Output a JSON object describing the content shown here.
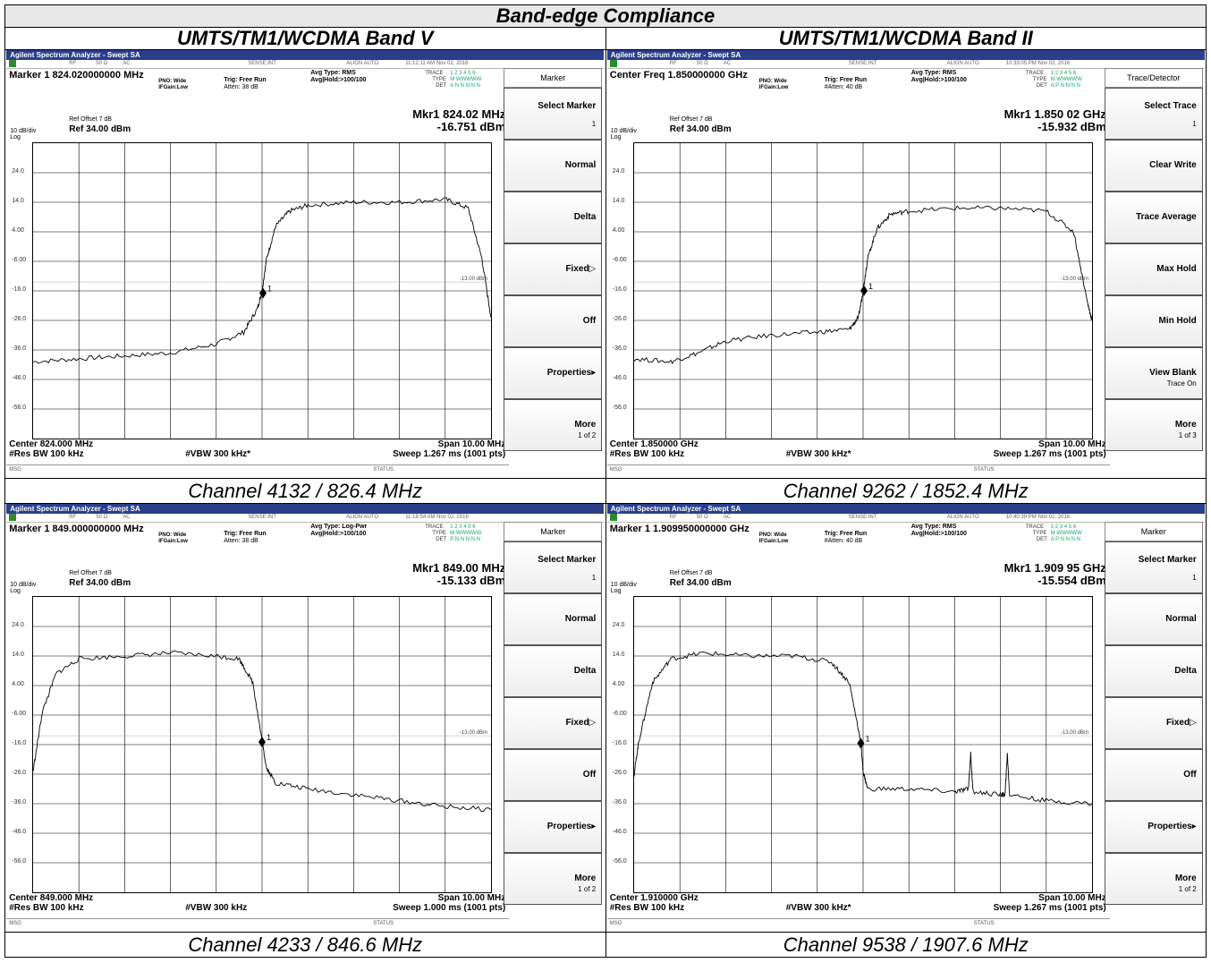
{
  "report": {
    "title": "Band-edge Compliance",
    "col_left": "UMTS/TM1/WCDMA Band V",
    "col_right": "UMTS/TM1/WCDMA Band II"
  },
  "app_title": "Agilent Spectrum Analyzer - Swept SA",
  "common": {
    "rf": "RF",
    "ohm": "50 Ω",
    "ac": "AC",
    "sense": "SENSE:INT",
    "align": "ALIGN AUTO",
    "trace_label": "TRACE",
    "type_label": "TYPE",
    "det_label": "DET",
    "trace_nums": "1 2 3 4 5 6",
    "pno": "PNO: Wide",
    "ifgain": "IFGain:Low",
    "trig": "Trig: Free Run",
    "ref_offset": "Ref Offset 7 dB",
    "ref_level": "Ref 34.00 dBm",
    "scale": "10 dB/div",
    "log": "Log",
    "res_bw": "#Res BW 100 kHz",
    "span": "Span 10.00 MHz",
    "msg": "MSG",
    "status": "STATUS",
    "marker_mark": "1",
    "limit_label": "-13.00 dBm",
    "y_ticks": [
      "24.0",
      "14.0",
      "4.00",
      "-6.00",
      "-16.0",
      "-26.0",
      "-36.0",
      "-46.0",
      "-56.0"
    ]
  },
  "shots": [
    {
      "time": "11:12:11 AM Nov 02, 2016",
      "type_val": "M WWWWW",
      "det_val": "A N N N N N",
      "header": "Marker 1 824.020000000 MHz",
      "avg_type": "Avg Type: RMS",
      "avg_hold": "Avg|Hold:>100/100",
      "atten": "Atten: 38 dB",
      "mkr_freq": "Mkr1 824.02 MHz",
      "mkr_amp": "-16.751 dBm",
      "center": "Center 824.000 MHz",
      "vbw": "#VBW 300 kHz*",
      "sweep": "Sweep  1.267 ms (1001 pts)",
      "caption": "Channel 4132 / 826.4 MHz",
      "menu_title": "Marker",
      "keys": [
        {
          "label": "Select Marker",
          "sub": "1"
        },
        {
          "label": "Normal",
          "sub": ""
        },
        {
          "label": "Delta",
          "sub": ""
        },
        {
          "label": "Fixed▷",
          "sub": ""
        },
        {
          "label": "Off",
          "sub": ""
        },
        {
          "label": "Properties▸",
          "sub": ""
        },
        {
          "label": "More",
          "sub": "1 of 2"
        }
      ],
      "chart_data": {
        "type": "line",
        "x_start_mhz": 819.0,
        "x_end_mhz": 829.0,
        "ylim": [
          -66,
          34
        ],
        "limit_dbm": -13.0,
        "marker": {
          "x_mhz": 824.02,
          "y_dbm": -16.751
        },
        "series": [
          {
            "x": [
              819.0,
              820.0,
              821.0,
              822.0,
              823.0,
              823.6,
              823.9,
              824.0,
              824.1,
              824.3,
              824.6,
              825.0,
              826.0,
              827.0,
              828.0,
              828.5,
              828.8,
              829.0
            ],
            "y": [
              -40,
              -39,
              -38,
              -37,
              -34,
              -30,
              -22,
              -16,
              -5,
              6,
              11,
              13,
              14,
              14,
              15,
              12,
              -5,
              -25
            ]
          }
        ]
      }
    },
    {
      "time": "10:33:05 PM Nov 02, 2016",
      "type_val": "M WWWWW",
      "det_val": "A P N N N N",
      "header": "Center Freq 1.850000000 GHz",
      "avg_type": "Avg Type: RMS",
      "avg_hold": "Avg|Hold:>100/100",
      "atten": "#Atten: 40 dB",
      "mkr_freq": "Mkr1 1.850 02 GHz",
      "mkr_amp": "-15.932 dBm",
      "center": "Center 1.850000 GHz",
      "vbw": "#VBW 300 kHz*",
      "sweep": "Sweep  1.267 ms (1001 pts)",
      "caption": "Channel 9262 / 1852.4 MHz",
      "menu_title": "Trace/Detector",
      "keys": [
        {
          "label": "Select Trace",
          "sub": "1"
        },
        {
          "label": "Clear Write",
          "sub": ""
        },
        {
          "label": "Trace Average",
          "sub": ""
        },
        {
          "label": "Max Hold",
          "sub": ""
        },
        {
          "label": "Min Hold",
          "sub": ""
        },
        {
          "label": "View Blank",
          "sub": "Trace On"
        },
        {
          "label": "More",
          "sub": "1 of 3"
        }
      ],
      "chart_data": {
        "type": "line",
        "x_start_mhz": 1845.0,
        "x_end_mhz": 1855.0,
        "ylim": [
          -66,
          34
        ],
        "limit_dbm": -13.0,
        "marker": {
          "x_mhz": 1850.02,
          "y_dbm": -15.932
        },
        "series": [
          {
            "x": [
              1845.0,
              1845.8,
              1846.4,
              1847.0,
              1848.0,
              1849.0,
              1849.7,
              1849.9,
              1850.0,
              1850.1,
              1850.3,
              1850.6,
              1851.0,
              1852.0,
              1853.0,
              1854.0,
              1854.6,
              1854.9,
              1855.0
            ],
            "y": [
              -39,
              -40,
              -37,
              -33,
              -31,
              -30,
              -29,
              -25,
              -16,
              -5,
              5,
              10,
              11,
              12,
              12,
              11,
              4,
              -20,
              -26
            ]
          }
        ]
      }
    },
    {
      "time": "11:18:54 AM Nov 02, 2016",
      "type_val": "M WWWWW",
      "det_val": "P N N N N N",
      "header": "Marker 1 849.000000000 MHz",
      "avg_type": "Avg Type: Log-Pwr",
      "avg_hold": "Avg|Hold:>100/100",
      "atten": "Atten: 38 dB",
      "mkr_freq": "Mkr1 849.00 MHz",
      "mkr_amp": "-15.133 dBm",
      "center": "Center 849.000 MHz",
      "vbw": "#VBW 300 kHz",
      "sweep": "Sweep  1.000 ms (1001 pts)",
      "caption": "Channel 4233 / 846.6 MHz",
      "menu_title": "Marker",
      "keys": [
        {
          "label": "Select Marker",
          "sub": "1"
        },
        {
          "label": "Normal",
          "sub": ""
        },
        {
          "label": "Delta",
          "sub": ""
        },
        {
          "label": "Fixed▷",
          "sub": ""
        },
        {
          "label": "Off",
          "sub": ""
        },
        {
          "label": "Properties▸",
          "sub": ""
        },
        {
          "label": "More",
          "sub": "1 of 2"
        }
      ],
      "chart_data": {
        "type": "line",
        "x_start_mhz": 844.0,
        "x_end_mhz": 854.0,
        "ylim": [
          -66,
          34
        ],
        "limit_dbm": -13.0,
        "marker": {
          "x_mhz": 849.0,
          "y_dbm": -15.133
        },
        "series": [
          {
            "x": [
              844.0,
              844.2,
              844.5,
              845.0,
              846.0,
              847.0,
              848.0,
              848.5,
              848.8,
              849.0,
              849.1,
              849.3,
              850.0,
              851.0,
              852.0,
              853.0,
              854.0
            ],
            "y": [
              -25,
              -5,
              8,
              13,
              14,
              15,
              14,
              13,
              5,
              -15,
              -24,
              -29,
              -31,
              -33,
              -35,
              -37,
              -38
            ]
          }
        ]
      }
    },
    {
      "time": "10:40:39 PM Nov 02, 2016",
      "type_val": "M WWWWW",
      "det_val": "A P N N N N",
      "header": "Marker 1 1.909950000000 GHz",
      "avg_type": "Avg Type: RMS",
      "avg_hold": "Avg|Hold:>100/100",
      "atten": "#Atten: 40 dB",
      "mkr_freq": "Mkr1 1.909 95 GHz",
      "mkr_amp": "-15.554 dBm",
      "center": "Center 1.910000 GHz",
      "vbw": "#VBW 300 kHz*",
      "sweep": "Sweep  1.267 ms (1001 pts)",
      "caption": "Channel 9538 / 1907.6 MHz",
      "menu_title": "Marker",
      "keys": [
        {
          "label": "Select Marker",
          "sub": "1"
        },
        {
          "label": "Normal",
          "sub": ""
        },
        {
          "label": "Delta",
          "sub": ""
        },
        {
          "label": "Fixed▷",
          "sub": ""
        },
        {
          "label": "Off",
          "sub": ""
        },
        {
          "label": "Properties▸",
          "sub": ""
        },
        {
          "label": "More",
          "sub": "1 of 2"
        }
      ],
      "chart_data": {
        "type": "line",
        "x_start_mhz": 1905.0,
        "x_end_mhz": 1915.0,
        "ylim": [
          -66,
          34
        ],
        "limit_dbm": -13.0,
        "marker": {
          "x_mhz": 1909.95,
          "y_dbm": -15.554
        },
        "series": [
          {
            "x": [
              1905.0,
              1905.1,
              1905.4,
              1905.8,
              1906.5,
              1907.5,
              1908.5,
              1909.3,
              1909.7,
              1909.95,
              1910.0,
              1910.1,
              1911.0,
              1912.0,
              1912.3,
              1912.35,
              1912.4,
              1913.0,
              1913.1,
              1913.15,
              1913.2,
              1914.0,
              1915.0
            ],
            "y": [
              -26,
              -15,
              5,
              13,
              15,
              14,
              14,
              12,
              5,
              -15,
              -25,
              -31,
              -31,
              -32,
              -31,
              -19,
              -32,
              -33,
              -33,
              -19,
              -33,
              -35,
              -36
            ]
          }
        ]
      }
    }
  ]
}
